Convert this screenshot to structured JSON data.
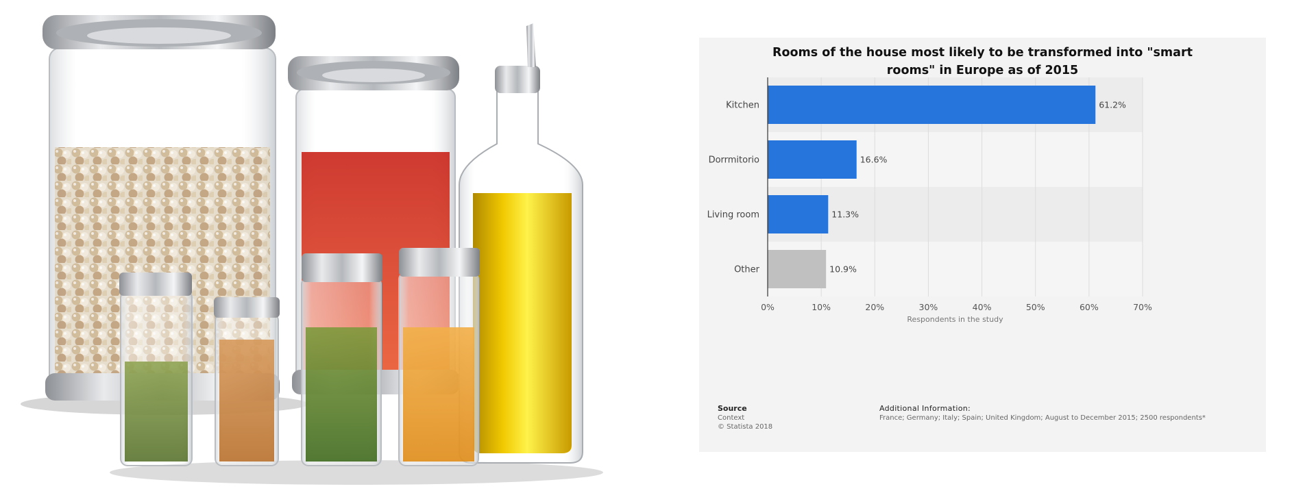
{
  "chart_data": {
    "type": "bar",
    "orientation": "horizontal",
    "title": "Rooms of the house most likely to be transformed into \"smart rooms\" in Europe as of 2015",
    "categories": [
      "Kitchen",
      "Dorrmitorio",
      "Living room",
      "Other"
    ],
    "values": [
      61.2,
      16.6,
      11.3,
      10.9
    ],
    "value_labels": [
      "61.2%",
      "16.6%",
      "11.3%",
      "10.9%"
    ],
    "bar_colors": [
      "#2675dc",
      "#2675dc",
      "#2675dc",
      "#c0c0c0"
    ],
    "xlabel": "Respondents in the study",
    "xlim": [
      0,
      70
    ],
    "x_ticks": [
      "0%",
      "10%",
      "20%",
      "30%",
      "40%",
      "50%",
      "60%",
      "70%"
    ],
    "grid": true
  },
  "footer": {
    "source_heading": "Source",
    "source_lines": [
      "Context",
      "© Statista 2018"
    ],
    "info_heading": "Additional Information:",
    "info_text": "France; Germany; Italy; Spain; United Kingdom; August to December 2015; 2500 respondents*"
  },
  "colors": {
    "card_background": "#f3f3f3",
    "bar_primary": "#2675dc",
    "bar_other": "#c0c0c0"
  }
}
